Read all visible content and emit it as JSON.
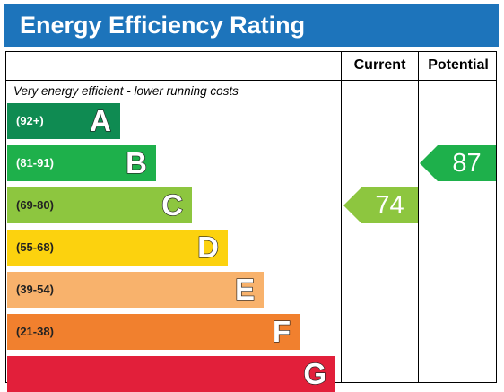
{
  "title": "Energy Efficiency Rating",
  "columns": {
    "current": "Current",
    "potential": "Potential"
  },
  "top_note": "Very energy efficient - lower running costs",
  "bands": [
    {
      "range": "(92+)",
      "letter": "A",
      "color": "#0f8b52",
      "range_color": "#ffffff"
    },
    {
      "range": "(81-91)",
      "letter": "B",
      "color": "#1eb04b",
      "range_color": "#ffffff"
    },
    {
      "range": "(69-80)",
      "letter": "C",
      "color": "#8dc63f",
      "range_color": "#222222"
    },
    {
      "range": "(55-68)",
      "letter": "D",
      "color": "#fcd20e",
      "range_color": "#222222"
    },
    {
      "range": "(39-54)",
      "letter": "E",
      "color": "#f8b26c",
      "range_color": "#222222"
    },
    {
      "range": "(21-38)",
      "letter": "F",
      "color": "#f1802e",
      "range_color": "#222222"
    },
    {
      "range": "",
      "letter": "G",
      "color": "#e21f3a",
      "range_color": "#ffffff"
    }
  ],
  "ratings": {
    "current": {
      "value": "74",
      "band": "C",
      "color": "#8dc63f"
    },
    "potential": {
      "value": "87",
      "band": "B",
      "color": "#1eb04b"
    }
  }
}
